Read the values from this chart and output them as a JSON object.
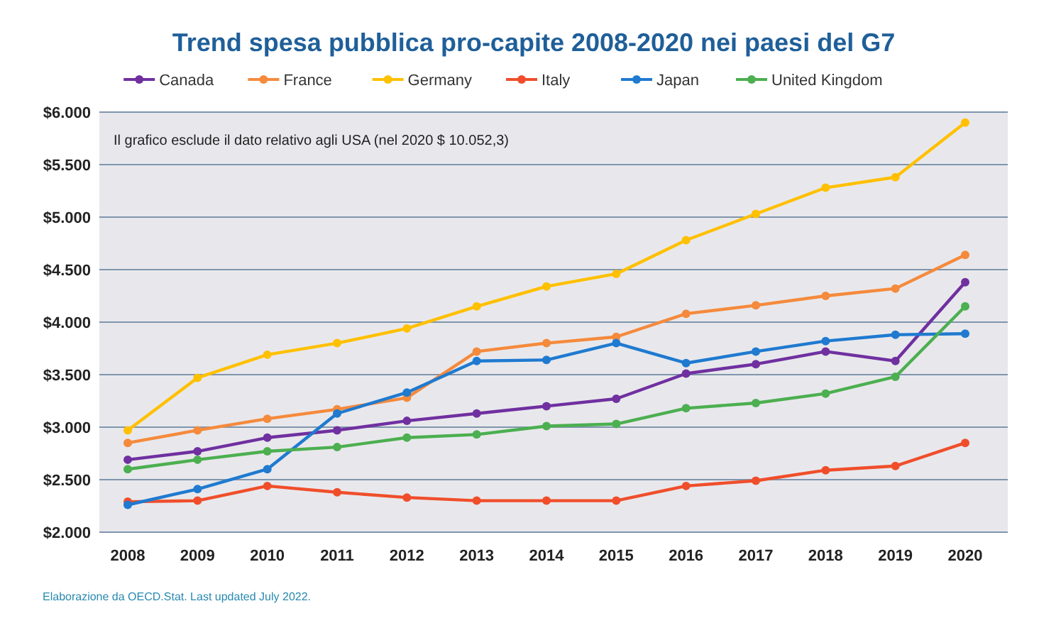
{
  "chart_data": {
    "type": "line",
    "title": "Trend spesa pubblica pro-capite 2008-2020 nei paesi del G7",
    "categories": [
      "2008",
      "2009",
      "2010",
      "2011",
      "2012",
      "2013",
      "2014",
      "2015",
      "2016",
      "2017",
      "2018",
      "2019",
      "2020"
    ],
    "series": [
      {
        "name": "Canada",
        "color": "#7030a0",
        "values": [
          2690,
          2770,
          2900,
          2970,
          3060,
          3130,
          3200,
          3270,
          3510,
          3600,
          3720,
          3630,
          4380
        ]
      },
      {
        "name": "France",
        "color": "#f58a3c",
        "values": [
          2850,
          2970,
          3080,
          3170,
          3280,
          3720,
          3800,
          3860,
          4080,
          4160,
          4250,
          4320,
          4640
        ]
      },
      {
        "name": "Germany",
        "color": "#ffc000",
        "values": [
          2970,
          3470,
          3690,
          3800,
          3940,
          4150,
          4340,
          4460,
          4780,
          5030,
          5280,
          5380,
          5900
        ]
      },
      {
        "name": "Italy",
        "color": "#f04e2b",
        "values": [
          2290,
          2300,
          2440,
          2380,
          2330,
          2300,
          2300,
          2300,
          2440,
          2490,
          2590,
          2630,
          2850
        ]
      },
      {
        "name": "Japan",
        "color": "#1f7ad0",
        "values": [
          2260,
          2410,
          2600,
          3130,
          3330,
          3630,
          3640,
          3800,
          3610,
          3720,
          3820,
          3880,
          3890
        ]
      },
      {
        "name": "United Kingdom",
        "color": "#4caf50",
        "values": [
          2600,
          2690,
          2770,
          2810,
          2900,
          2930,
          3010,
          3030,
          3180,
          3230,
          3320,
          3480,
          4150
        ]
      }
    ],
    "ylim": [
      2000,
      6000
    ],
    "yticks": [
      {
        "value": 2000,
        "label": "$2.000"
      },
      {
        "value": 2500,
        "label": "$2.500"
      },
      {
        "value": 3000,
        "label": "$3.000"
      },
      {
        "value": 3500,
        "label": "$3.500"
      },
      {
        "value": 4000,
        "label": "$4.000"
      },
      {
        "value": 4500,
        "label": "$4.500"
      },
      {
        "value": 5000,
        "label": "$5.000"
      },
      {
        "value": 5500,
        "label": "$5.500"
      },
      {
        "value": 6000,
        "label": "$6.000"
      }
    ],
    "grid": "y",
    "legend": "top",
    "marker": "circle",
    "line_style": "solid",
    "annotations": [
      "Il grafico esclude il dato relativo agli USA (nel 2020 $ 10.052,3)",
      "Elaborazione da OECD.Stat. Last updated July 2022."
    ]
  }
}
